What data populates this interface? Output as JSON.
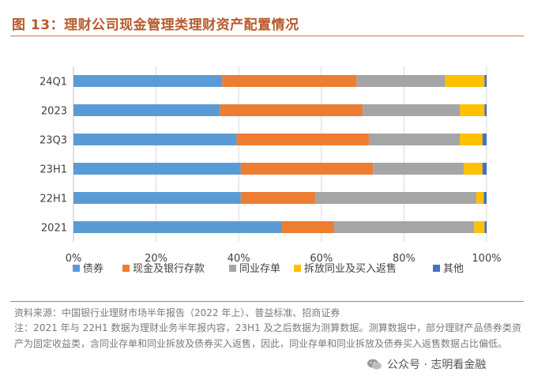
{
  "title": "图 13：理财公司现金管理类理财资产配置情况",
  "chart_data": {
    "type": "bar",
    "orientation": "horizontal",
    "stacked": true,
    "categories": [
      "24Q1",
      "2023",
      "23Q3",
      "23H1",
      "22H1",
      "2021"
    ],
    "series": [
      {
        "name": "债券",
        "color": "#5b9bd5",
        "values": [
          36,
          35.5,
          39.5,
          40.5,
          40.5,
          50.5
        ]
      },
      {
        "name": "现金及银行存款",
        "color": "#ed7d31",
        "values": [
          32.5,
          34.5,
          32,
          32,
          18,
          12.5
        ]
      },
      {
        "name": "同业存单",
        "color": "#a5a5a5",
        "values": [
          21.5,
          23.5,
          22,
          22,
          39,
          34
        ]
      },
      {
        "name": "拆放同业及买入返售",
        "color": "#ffc000",
        "values": [
          9.5,
          6,
          5.5,
          4.5,
          1.8,
          2.5
        ]
      },
      {
        "name": "其他",
        "color": "#4472c4",
        "values": [
          0.5,
          0.5,
          1,
          1,
          0.7,
          0.5
        ]
      }
    ],
    "x_ticks": [
      "0%",
      "20%",
      "40%",
      "60%",
      "80%",
      "100%"
    ],
    "xlim": [
      0,
      100
    ],
    "legend": "bottom",
    "grid": true
  },
  "source": "资料来源：中国银行业理财市场半年报告（2022 年上）、普益标准、招商证券",
  "note": "注：2021 年与 22H1 数据为理财业务半年报内容，23H1 及之后数据为测算数据。测算数据中，部分理财产品债券类资产为固定收益类，含同业存单和同业拆放及债券买入返售，因此，同业存单和同业拆放及债券买入返售数据占比偏低。",
  "watermark": "公众号 · 志明看金融"
}
